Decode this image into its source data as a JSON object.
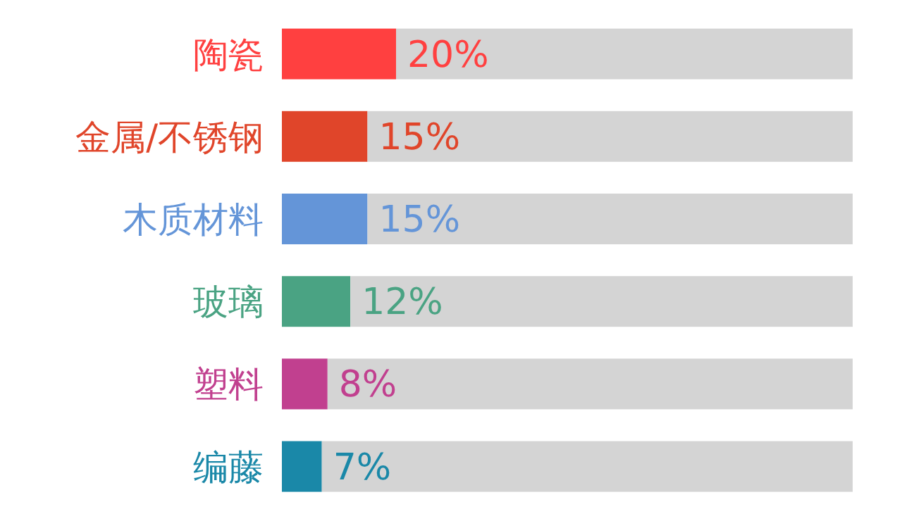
{
  "chart_data": {
    "type": "bar",
    "orientation": "horizontal",
    "categories": [
      "陶瓷",
      "金属/不锈钢",
      "木质材料",
      "玻璃",
      "塑料",
      "编藤"
    ],
    "xlim": [
      0,
      100
    ],
    "tick_labels": "y",
    "stacked": true,
    "series": [
      {
        "colors": [
          "#ff4040",
          "#e0452a",
          "#6495d8",
          "#4aa383",
          "#c1408f",
          "#1a88a8"
        ],
        "values": [
          20,
          15,
          15,
          12,
          8,
          7
        ],
        "value_labels": [
          "20%",
          "15%",
          "15%",
          "12%",
          "8%",
          "7%"
        ]
      },
      {
        "color": "#d4d4d4",
        "values": [
          80,
          85,
          85,
          88,
          92,
          93
        ]
      }
    ]
  }
}
